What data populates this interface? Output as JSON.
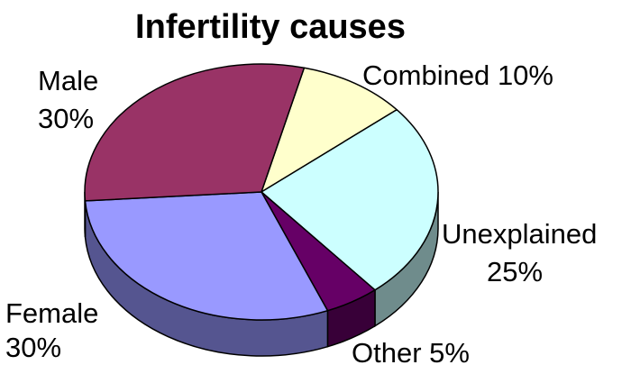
{
  "chart_data": {
    "type": "pie",
    "title": "Infertility causes",
    "slices": [
      {
        "name": "Combined",
        "value": 10,
        "percent_label": "10%",
        "color": "#ffffcc",
        "side_color": "#8c8c70"
      },
      {
        "name": "Unexplained",
        "value": 25,
        "percent_label": "25%",
        "color": "#ccffff",
        "side_color": "#6f8c8c"
      },
      {
        "name": "Other",
        "value": 5,
        "percent_label": "5%",
        "color": "#660066",
        "side_color": "#380038"
      },
      {
        "name": "Female",
        "value": 30,
        "percent_label": "30%",
        "color": "#9999ff",
        "side_color": "#555590"
      },
      {
        "name": "Male",
        "value": 30,
        "percent_label": "30%",
        "color": "#993366",
        "side_color": "#561c38"
      }
    ]
  }
}
